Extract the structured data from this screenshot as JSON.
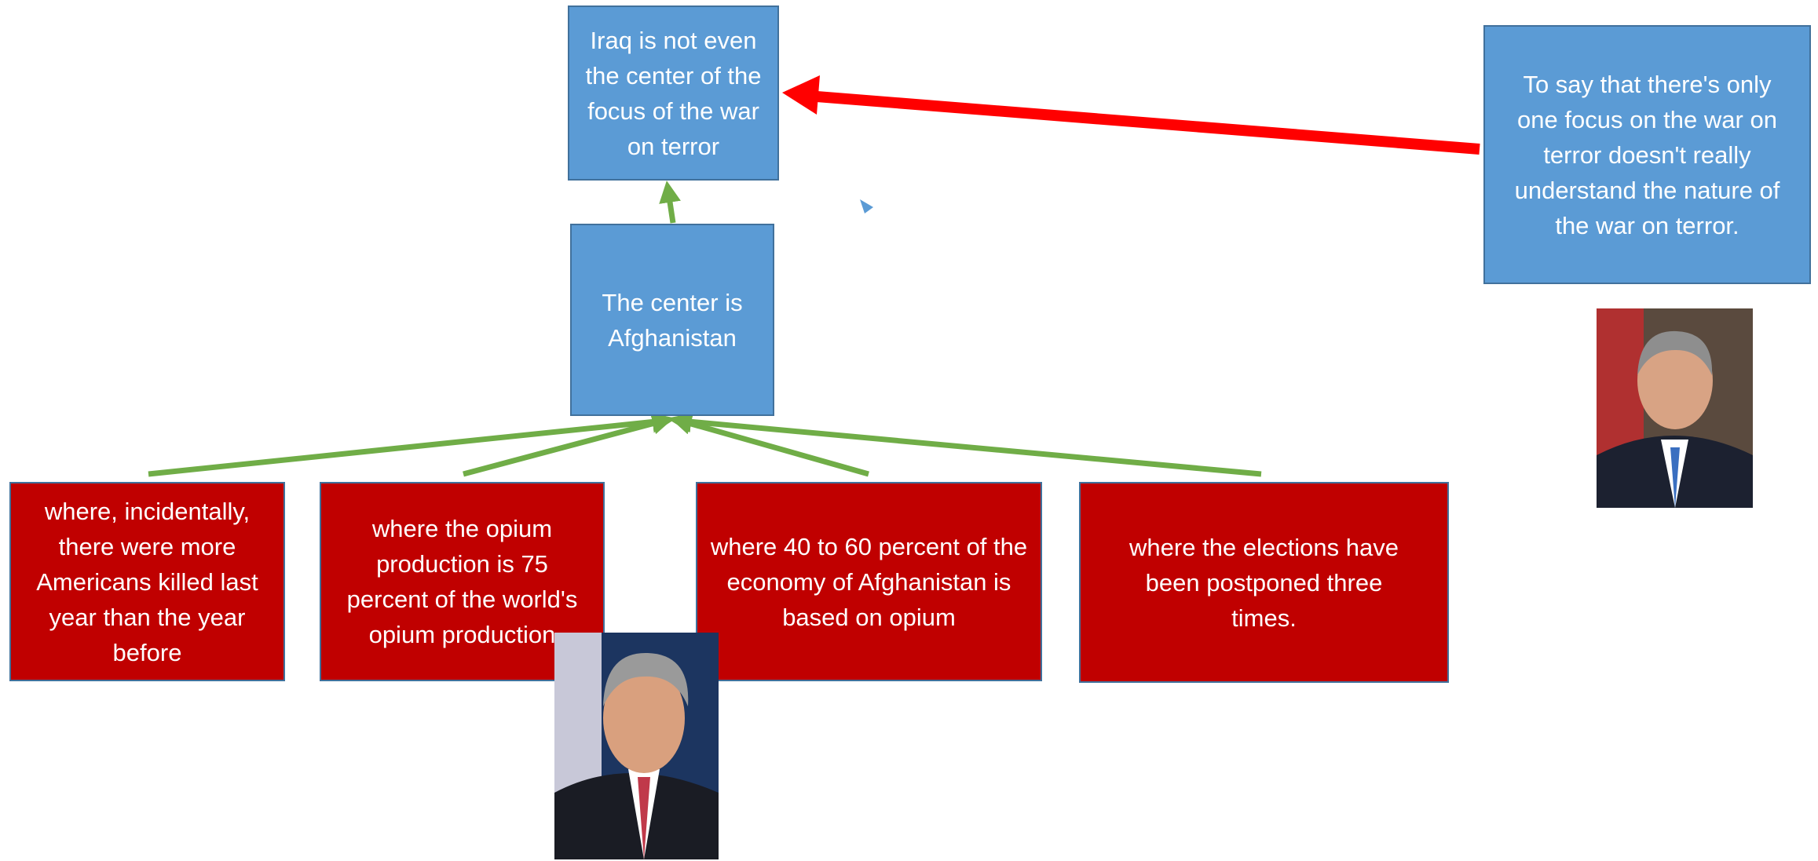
{
  "nodes": [
    {
      "label": "Iraq is not even the center of the focus of the war on terror"
    },
    {
      "label": "The center is Afghanistan"
    },
    {
      "label": "To say that there's only one focus on the war on terror doesn't really understand the nature of the war on terror."
    },
    {
      "label": "where, incidentally, there were more Americans killed last year than the year before"
    },
    {
      "label": "where the opium production is 75 percent of the world's opium production"
    },
    {
      "label": "where 40 to 60 percent of the economy of Afghanistan is based on opium"
    },
    {
      "label": "where the elections have been postponed three times."
    }
  ]
}
